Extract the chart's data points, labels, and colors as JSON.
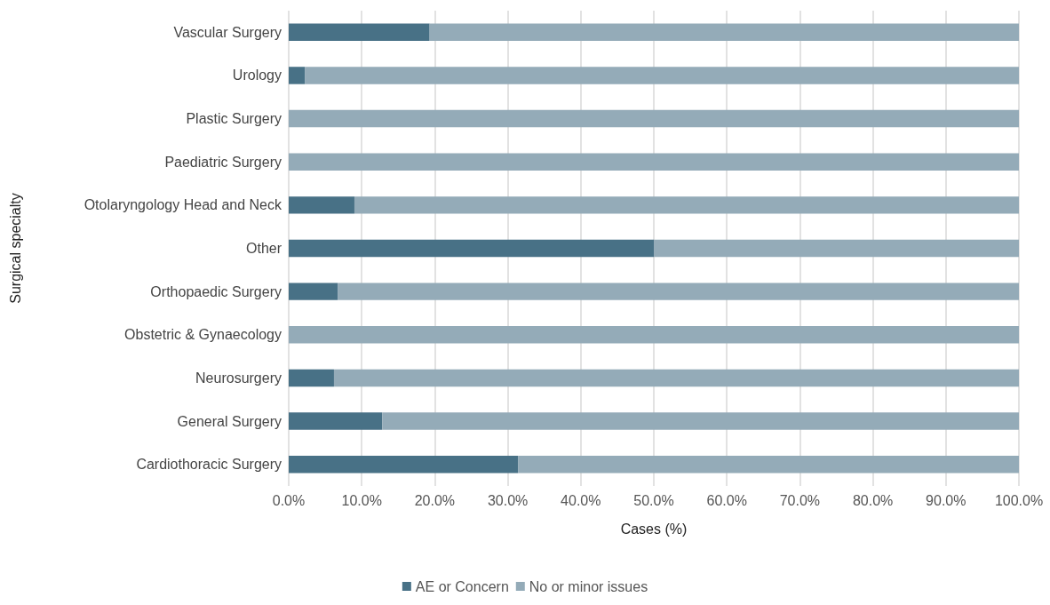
{
  "chart_data": {
    "type": "bar",
    "orientation": "horizontal",
    "stacked": true,
    "xlabel": "Cases (%)",
    "ylabel": "Surgical specialty",
    "categories": [
      "Vascular Surgery",
      "Urology",
      "Plastic Surgery",
      "Paediatric Surgery",
      "Otolaryngology Head and Neck",
      "Other",
      "Orthopaedic Surgery",
      "Obstetric & Gynaecology",
      "Neurosurgery",
      "General Surgery",
      "Cardiothoracic Surgery"
    ],
    "series": [
      {
        "name": "AE or Concern",
        "color": "#487186",
        "values": [
          19.3,
          2.2,
          0,
          0,
          9.0,
          50.0,
          6.7,
          0,
          6.2,
          12.8,
          31.4
        ]
      },
      {
        "name": "No or minor issues",
        "color": "#94abb8",
        "values": [
          80.7,
          97.8,
          100,
          100,
          91.0,
          50.0,
          93.3,
          100,
          93.8,
          87.2,
          68.6
        ]
      }
    ],
    "xlim": [
      0,
      100
    ],
    "xticks": [
      {
        "value": 0,
        "label": "0.0%"
      },
      {
        "value": 10,
        "label": "10.0%"
      },
      {
        "value": 20,
        "label": "20.0%"
      },
      {
        "value": 30,
        "label": "30.0%"
      },
      {
        "value": 40,
        "label": "40.0%"
      },
      {
        "value": 50,
        "label": "50.0%"
      },
      {
        "value": 60,
        "label": "60.0%"
      },
      {
        "value": 70,
        "label": "70.0%"
      },
      {
        "value": 80,
        "label": "80.0%"
      },
      {
        "value": 90,
        "label": "90.0%"
      },
      {
        "value": 100,
        "label": "100.0%"
      }
    ],
    "grid": "x",
    "legend": "bottom"
  }
}
